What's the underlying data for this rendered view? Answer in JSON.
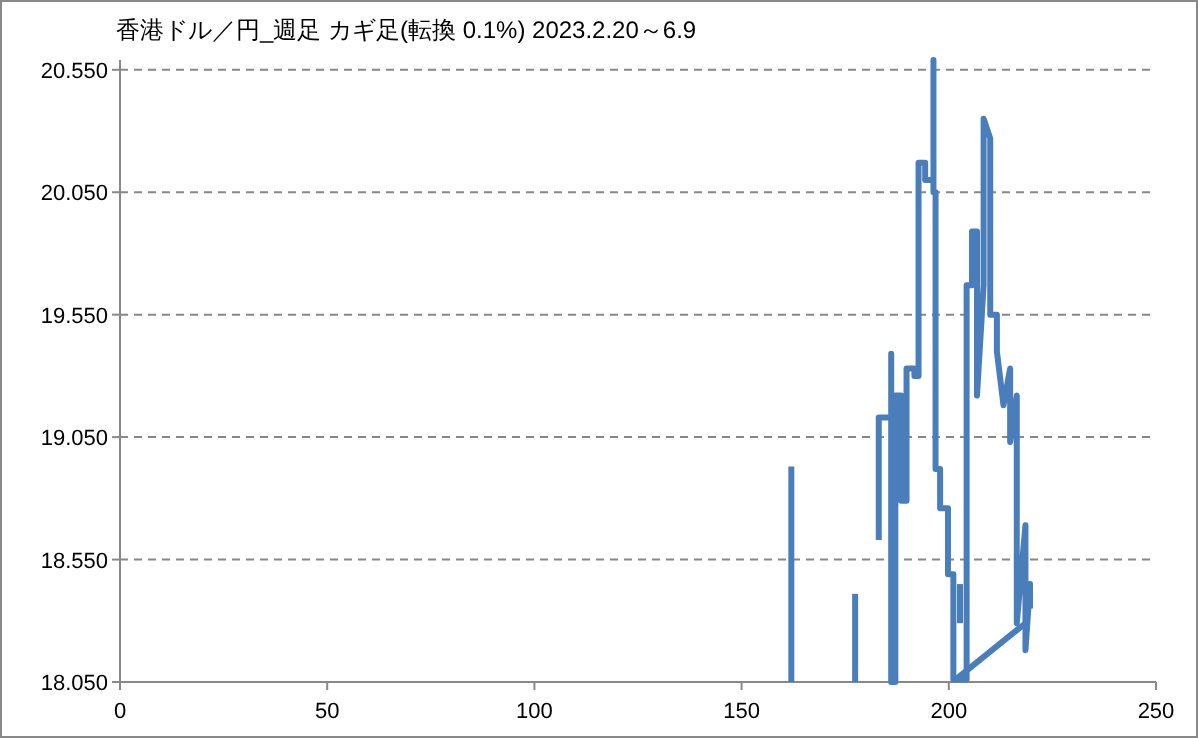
{
  "chart_data": {
    "type": "line",
    "title": "香港ドル／円_週足  カギ足(転換 0.1%)   2023.2.20～6.9",
    "xlim": [
      0,
      250
    ],
    "xticks": [
      0,
      50,
      100,
      150,
      200,
      250
    ],
    "ylim": [
      18.05,
      20.59
    ],
    "yticks": [
      {
        "value": 18.05,
        "label": "18.050"
      },
      {
        "value": 18.55,
        "label": "18.550"
      },
      {
        "value": 19.05,
        "label": "19.050"
      },
      {
        "value": 19.55,
        "label": "19.550"
      },
      {
        "value": 20.05,
        "label": "20.050"
      },
      {
        "value": 20.55,
        "label": "20.550"
      }
    ],
    "grid": "y",
    "series": [
      {
        "color": "#4a7ebb",
        "x": [
          162,
          162
        ],
        "values": [
          18.05,
          18.93
        ]
      },
      {
        "color": "#4a7ebb",
        "x": [
          177.4,
          177.4
        ],
        "values": [
          18.05,
          18.41
        ]
      },
      {
        "color": "#4a7ebb",
        "x": [
          183.1,
          183.1,
          186.1,
          186.1,
          186.1,
          187.1,
          187.1,
          188.5,
          188.5,
          189.8,
          189.8,
          191.7,
          191.7,
          192.7,
          192.7,
          194.3,
          194.3,
          196.3,
          196.3,
          196.3,
          196.8,
          196.8,
          197.9,
          197.9,
          199.8,
          199.8,
          201.1,
          201.1,
          204.3,
          204.3,
          205.6,
          205.6,
          206.8,
          206.8,
          208.4,
          208.4,
          210.0,
          210.0,
          211.6,
          211.6,
          213.2,
          214.8,
          214.8,
          216.4,
          216.4,
          218.5,
          218.5,
          219.6,
          219.6
        ],
        "values": [
          18.63,
          19.13,
          19.13,
          19.39,
          18.05,
          18.05,
          19.22,
          19.22,
          18.79,
          18.79,
          19.33,
          19.33,
          19.3,
          19.3,
          20.17,
          20.17,
          20.1,
          20.1,
          20.59,
          20.05,
          20.05,
          18.92,
          18.92,
          18.76,
          18.76,
          18.49,
          18.49,
          18.06,
          18.06,
          19.67,
          19.67,
          19.89,
          19.89,
          19.22,
          19.67,
          20.35,
          20.27,
          19.55,
          19.55,
          19.4,
          19.18,
          19.33,
          19.03,
          19.22,
          18.29,
          18.69,
          18.18,
          18.45,
          18.35
        ]
      },
      {
        "color": "#4a7ebb",
        "x": [
          201.6,
          218.5
        ],
        "values": [
          18.06,
          18.29
        ]
      },
      {
        "color": "#4a7ebb",
        "x": [
          202.7,
          202.7
        ],
        "values": [
          18.29,
          18.45
        ]
      }
    ]
  }
}
